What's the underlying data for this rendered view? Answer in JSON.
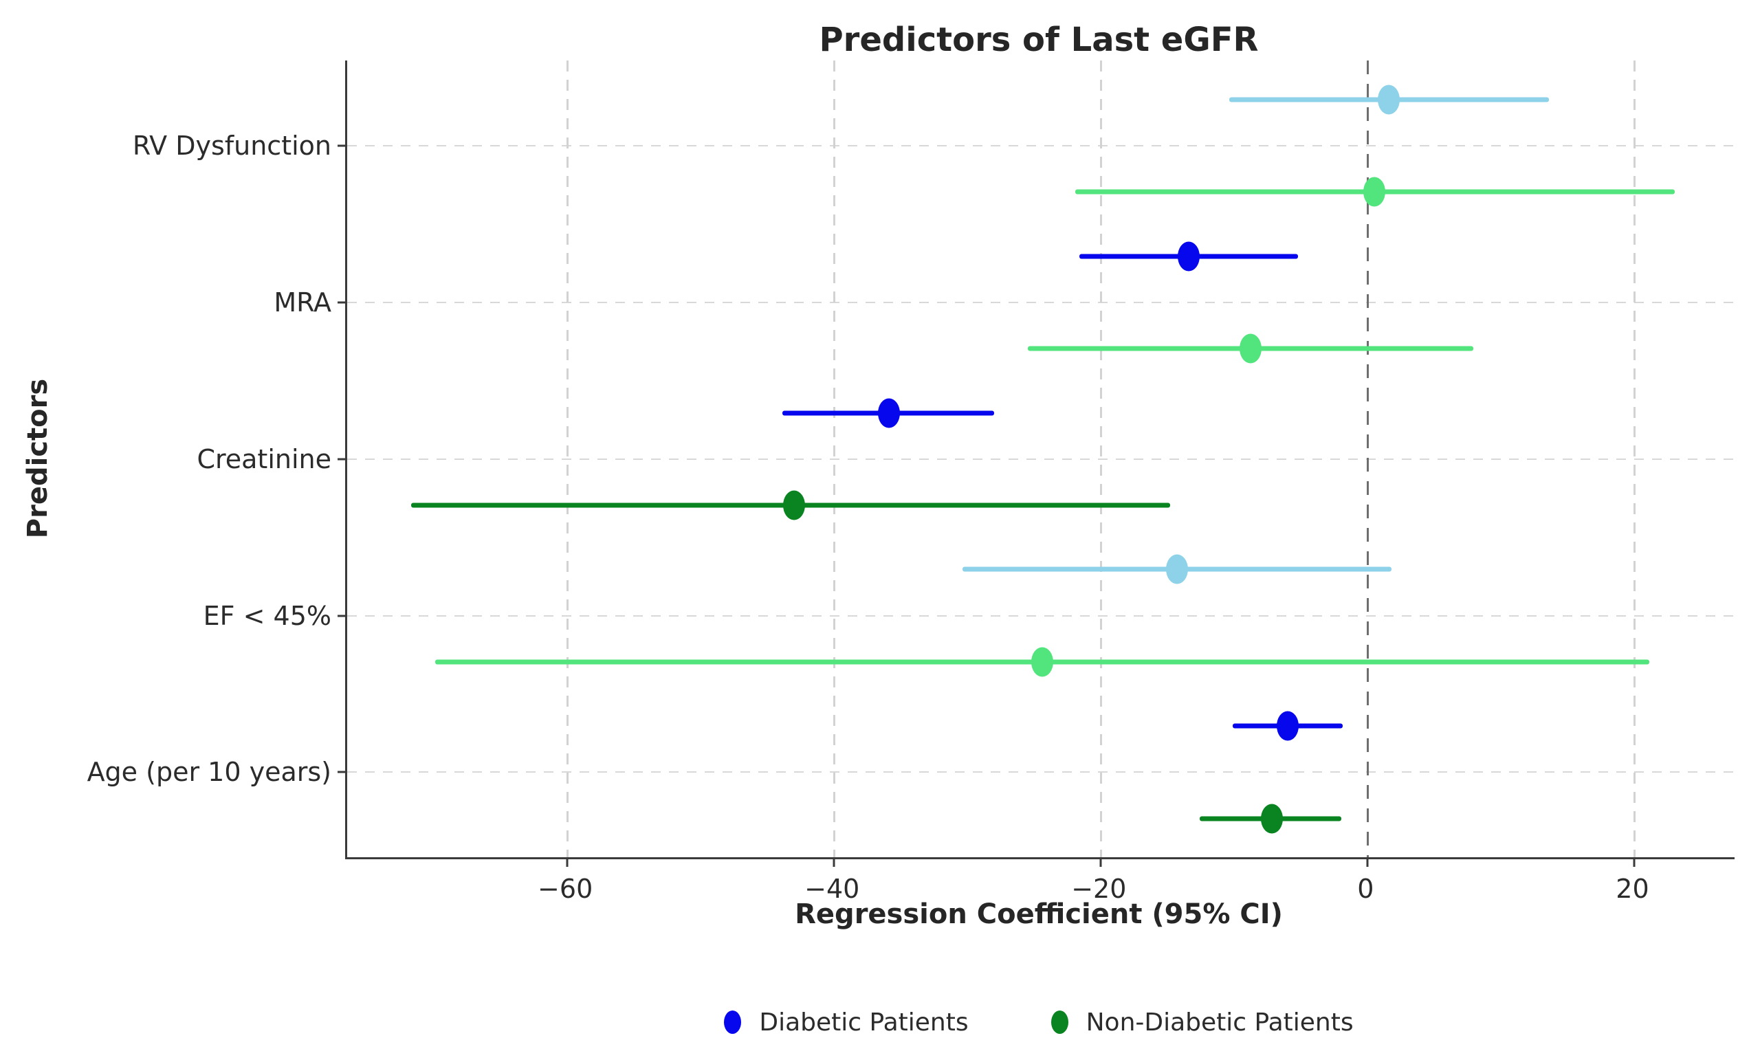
{
  "title": "Predictors of Last eGFR",
  "x_axis": {
    "label": "Regression Coefficient (95% CI)",
    "ticks": [
      -60,
      -40,
      -20,
      0,
      20
    ],
    "tick_labels": [
      "−60",
      "−40",
      "−20",
      "0",
      "20"
    ],
    "range": [
      -76.5,
      27.5
    ]
  },
  "y_axis": {
    "label": "Predictors"
  },
  "legend": [
    {
      "label": "Diabetic Patients",
      "color": "#0707ee"
    },
    {
      "label": "Non-Diabetic Patients",
      "color": "#0a8420"
    }
  ],
  "colors": {
    "diabetic_significant": "#0707ee",
    "diabetic_nonsignificant": "#8dd2e8",
    "nondiabetic_significant": "#0a8420",
    "nondiabetic_nonsignificant": "#53e57d",
    "zero_line": "#6e6e6e",
    "grid": "#d6d6d6",
    "spine": "#3a3a3a"
  },
  "chart_data": {
    "type": "forest",
    "zero_reference": 0,
    "grid": true,
    "legend_position": "bottom-center",
    "categories": [
      "RV Dysfunction",
      "MRA",
      "Creatinine",
      "EF < 45%",
      "Age (per 10 years)"
    ],
    "series": [
      {
        "name": "Diabetic Patients",
        "points": [
          {
            "category": "RV Dysfunction",
            "estimate": 1.6,
            "ci_low": -10.4,
            "ci_high": 13.6,
            "significant": false
          },
          {
            "category": "MRA",
            "estimate": -13.4,
            "ci_low": -21.6,
            "ci_high": -5.2,
            "significant": true
          },
          {
            "category": "Creatinine",
            "estimate": -35.9,
            "ci_low": -43.9,
            "ci_high": -28.0,
            "significant": true
          },
          {
            "category": "EF < 45%",
            "estimate": -14.3,
            "ci_low": -30.4,
            "ci_high": 1.8,
            "significant": false
          },
          {
            "category": "Age (per 10 years)",
            "estimate": -6.0,
            "ci_low": -10.1,
            "ci_high": -1.9,
            "significant": true
          }
        ]
      },
      {
        "name": "Non-Diabetic Patients",
        "points": [
          {
            "category": "RV Dysfunction",
            "estimate": 0.5,
            "ci_low": -21.9,
            "ci_high": 23.0,
            "significant": false
          },
          {
            "category": "MRA",
            "estimate": -8.8,
            "ci_low": -25.5,
            "ci_high": 7.9,
            "significant": false
          },
          {
            "category": "Creatinine",
            "estimate": -43.0,
            "ci_low": -71.7,
            "ci_high": -14.8,
            "significant": true
          },
          {
            "category": "EF < 45%",
            "estimate": -24.4,
            "ci_low": -69.9,
            "ci_high": 21.1,
            "significant": false
          },
          {
            "category": "Age (per 10 years)",
            "estimate": -7.2,
            "ci_low": -12.6,
            "ci_high": -2.0,
            "significant": true
          }
        ]
      }
    ]
  }
}
